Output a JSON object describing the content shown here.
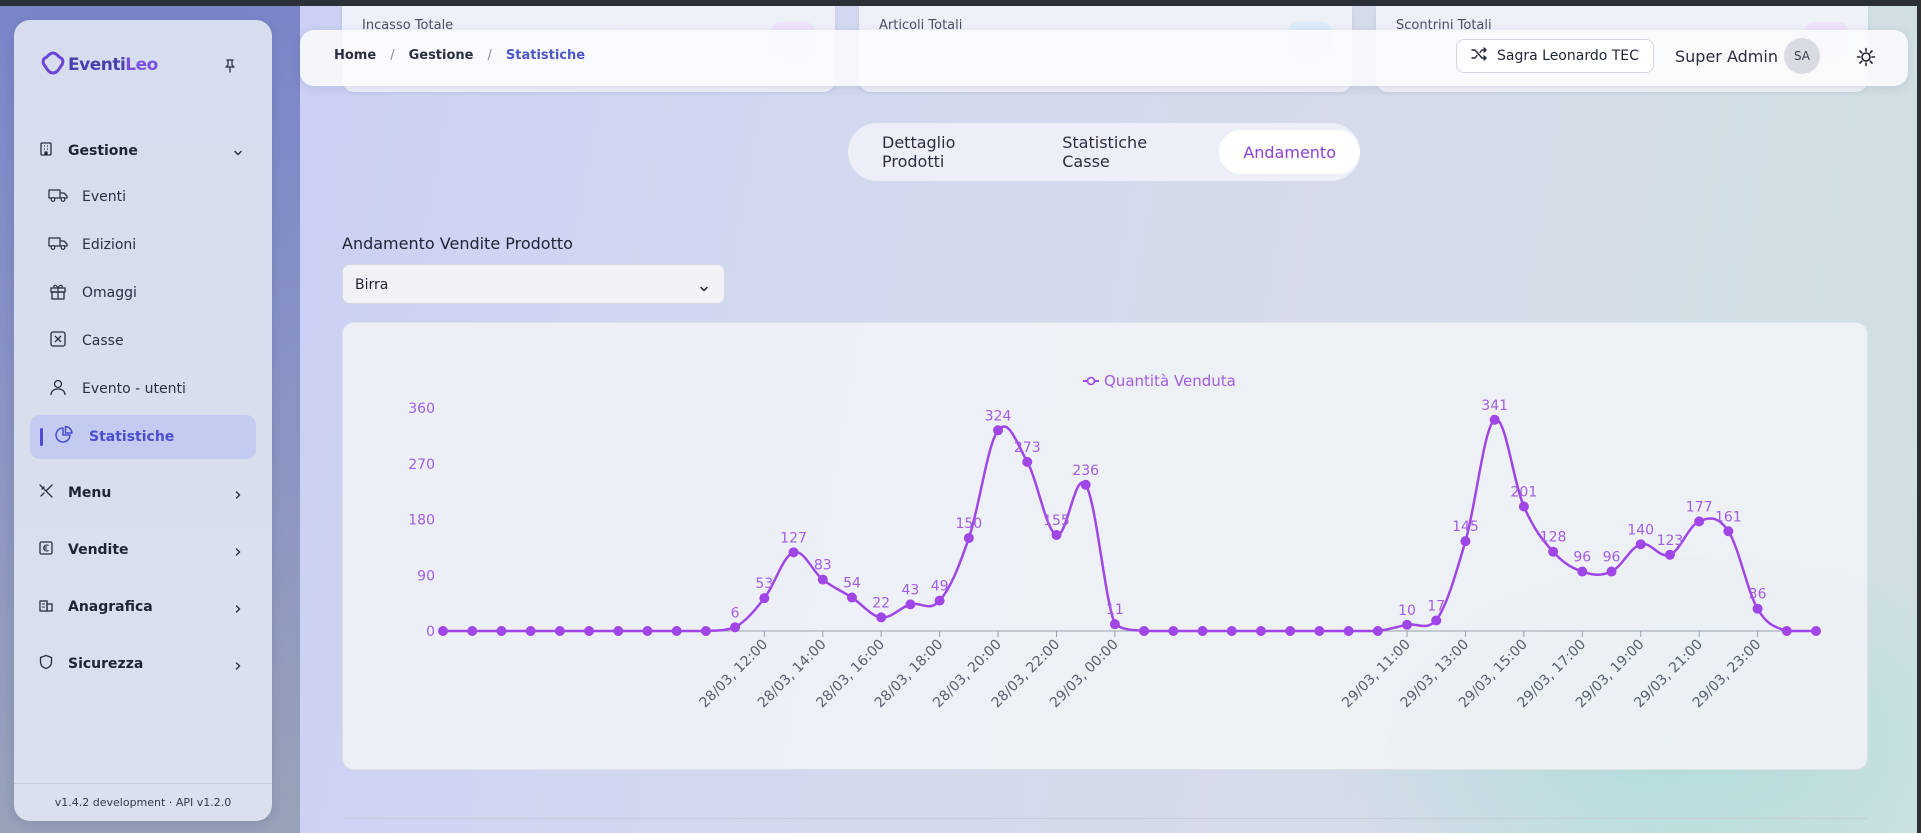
{
  "sidebar": {
    "brand_part1": "Eventi",
    "brand_part2": "Leo",
    "sections": {
      "gestione": "Gestione",
      "menu": "Menu",
      "vendite": "Vendite",
      "anagrafica": "Anagrafica",
      "sicurezza": "Sicurezza"
    },
    "items": {
      "eventi": "Eventi",
      "edizioni": "Edizioni",
      "omaggi": "Omaggi",
      "casse": "Casse",
      "evento_utenti": "Evento - utenti",
      "statistiche": "Statistiche"
    },
    "version": "v1.4.2 development · API v1.2.0"
  },
  "stat_cards": [
    "Incasso Totale",
    "Articoli Totali",
    "Scontrini Totali"
  ],
  "header": {
    "breadcrumb": [
      "Home",
      "Gestione",
      "Statistiche"
    ],
    "separator": "/",
    "event_button": "Sagra Leonardo TEC",
    "user_name": "Super Admin",
    "avatar_initials": "SA"
  },
  "tabs": [
    "Dettaglio Prodotti",
    "Statistiche Casse",
    "Andamento"
  ],
  "active_tab": 2,
  "product_select": {
    "title": "Andamento Vendite Prodotto",
    "value": "Birra"
  },
  "colors": {
    "accent": "#9b44e0",
    "line": "#a046e6",
    "label": "#a35ee0",
    "primary_blue": "#4e58c8"
  },
  "chart_data": {
    "type": "line",
    "legend": "Quantità Venduta",
    "legend_position": "top-center",
    "y_ticks": [
      "0",
      "90",
      "180",
      "270",
      "360"
    ],
    "ylim": [
      0,
      360
    ],
    "x_tick_labels": [
      "28/03, 12:00",
      "28/03, 14:00",
      "28/03, 16:00",
      "28/03, 18:00",
      "28/03, 20:00",
      "28/03, 22:00",
      "29/03, 00:00",
      "29/03, 11:00",
      "29/03, 13:00",
      "29/03, 15:00",
      "29/03, 17:00",
      "29/03, 19:00",
      "29/03, 21:00",
      "29/03, 23:00"
    ],
    "x_tick_index": [
      11,
      13,
      15,
      17,
      19,
      21,
      23,
      33,
      35,
      37,
      39,
      41,
      43,
      45
    ],
    "values": [
      0,
      0,
      0,
      0,
      0,
      0,
      0,
      0,
      0,
      0,
      6,
      53,
      127,
      83,
      54,
      22,
      43,
      49,
      150,
      324,
      273,
      155,
      236,
      11,
      0,
      0,
      0,
      0,
      0,
      0,
      0,
      0,
      0,
      10,
      17,
      145,
      341,
      201,
      128,
      96,
      96,
      140,
      123,
      177,
      161,
      36,
      0,
      0
    ],
    "grid": false
  }
}
